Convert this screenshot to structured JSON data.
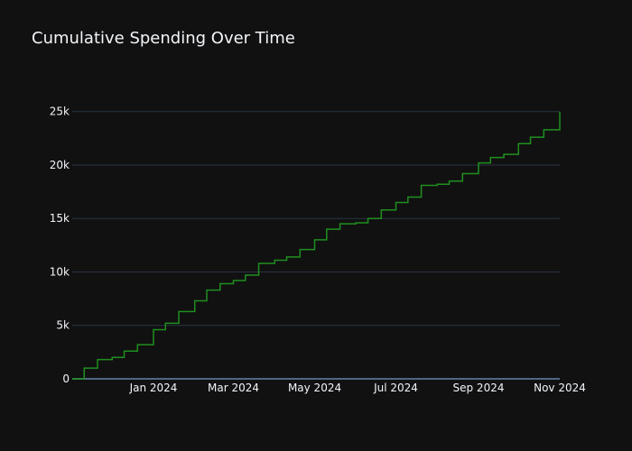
{
  "chart_data": {
    "type": "line",
    "title": "Cumulative Spending Over Time",
    "xlabel": "",
    "ylabel": "",
    "xlim": [
      "2023-11-01",
      "2024-11-01"
    ],
    "ylim": [
      0,
      27000
    ],
    "y_ticks": [
      0,
      5000,
      10000,
      15000,
      20000,
      25000
    ],
    "y_tick_labels": [
      "0",
      "5k",
      "10k",
      "15k",
      "20k",
      "25k"
    ],
    "x_ticks": [
      "2024-01-01",
      "2024-03-01",
      "2024-05-01",
      "2024-07-01",
      "2024-09-01",
      "2024-11-01"
    ],
    "x_tick_labels": [
      "Jan 2024",
      "Mar 2024",
      "May 2024",
      "Jul 2024",
      "Sep 2024",
      "Nov 2024"
    ],
    "grid": true,
    "line_shape": "step",
    "series": [
      {
        "x": [
          "2023-11-01",
          "2023-11-10",
          "2023-11-20",
          "2023-12-01",
          "2023-12-10",
          "2023-12-20",
          "2024-01-01",
          "2024-01-10",
          "2024-01-20",
          "2024-02-01",
          "2024-02-10",
          "2024-02-20",
          "2024-03-01",
          "2024-03-10",
          "2024-03-20",
          "2024-04-01",
          "2024-04-10",
          "2024-04-20",
          "2024-05-01",
          "2024-05-10",
          "2024-05-20",
          "2024-06-01",
          "2024-06-10",
          "2024-06-20",
          "2024-07-01",
          "2024-07-10",
          "2024-07-20",
          "2024-08-01",
          "2024-08-10",
          "2024-08-20",
          "2024-09-01",
          "2024-09-10",
          "2024-09-20",
          "2024-10-01",
          "2024-10-10",
          "2024-10-20",
          "2024-11-01"
        ],
        "y": [
          0,
          1000,
          1800,
          2000,
          2600,
          3200,
          4600,
          5200,
          6300,
          7300,
          8300,
          8900,
          9200,
          9700,
          10800,
          11100,
          11400,
          12100,
          13000,
          14000,
          14500,
          14600,
          15000,
          15800,
          16500,
          17000,
          18100,
          18200,
          18500,
          19200,
          20200,
          20700,
          21000,
          22000,
          22600,
          23300,
          25000
        ]
      }
    ],
    "colors": {
      "background": "#111111",
      "grid": "#283442",
      "zero_line": "#506784",
      "line": "#1f8f1f",
      "text": "#f2f5fa"
    }
  }
}
